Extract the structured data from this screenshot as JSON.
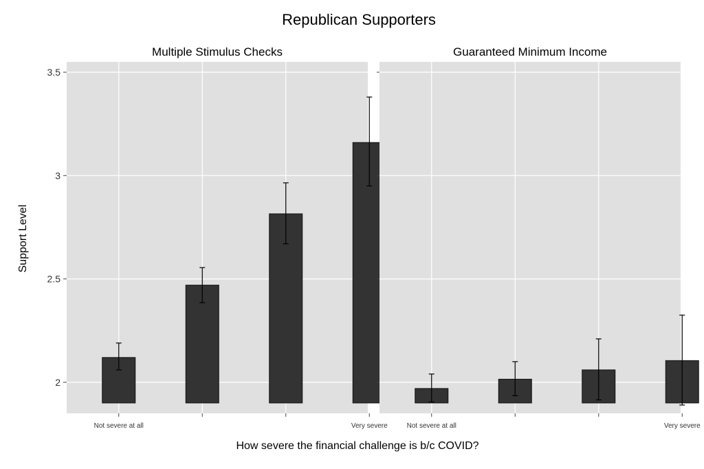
{
  "chart_data": {
    "type": "bar",
    "title": "Republican Supporters",
    "xlabel": "How severe the financial challenge is b/c COVID?",
    "ylabel": "Support Level",
    "ylim": [
      1.85,
      3.55
    ],
    "bar_base": 1.9,
    "yticks": [
      2,
      2.5,
      3,
      3.5
    ],
    "ytick_labels": [
      "2",
      "2.5",
      "3",
      "3.5"
    ],
    "grid": true,
    "colors": {
      "panel_bg": "#e0e0e0",
      "bar_fill": "#333333",
      "grid": "#ffffff"
    },
    "panels": [
      {
        "title": "Multiple  Stimulus Checks",
        "categories": [
          "Not severe at all",
          "",
          "",
          "Very severe"
        ],
        "values": [
          2.12,
          2.47,
          2.815,
          3.16
        ],
        "ci_low": [
          2.06,
          2.385,
          2.67,
          2.95
        ],
        "ci_high": [
          2.19,
          2.555,
          2.965,
          3.38
        ]
      },
      {
        "title": "Guaranteed Minimum Income",
        "categories": [
          "Not severe at all",
          "",
          "",
          "Very severe"
        ],
        "values": [
          1.97,
          2.015,
          2.06,
          2.105
        ],
        "ci_low": [
          1.905,
          1.935,
          1.915,
          1.89
        ],
        "ci_high": [
          2.04,
          2.1,
          2.21,
          2.325
        ]
      }
    ]
  }
}
